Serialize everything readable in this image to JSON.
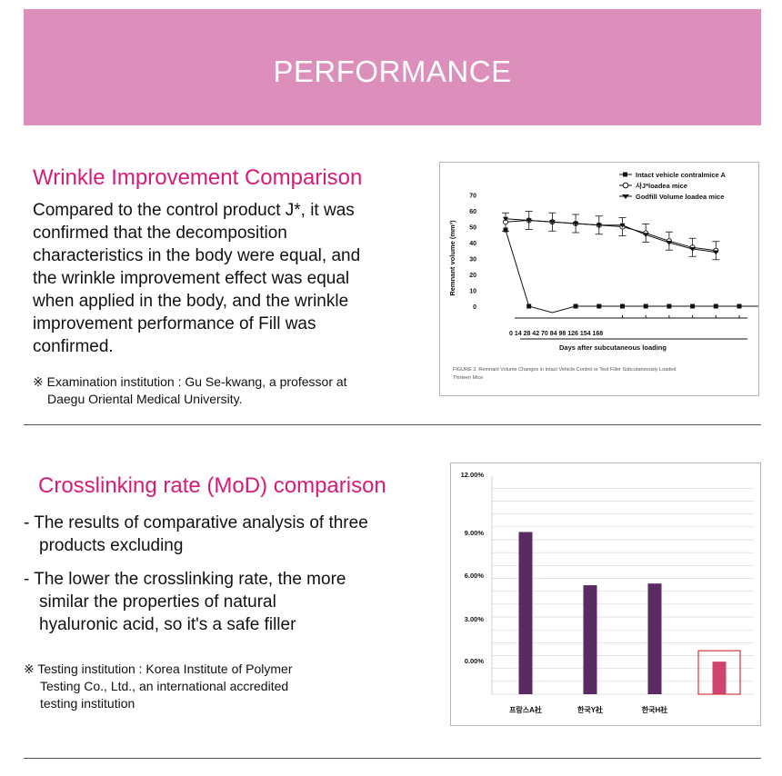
{
  "banner": {
    "title": "PERFORMANCE"
  },
  "section1": {
    "title": "Wrinkle Improvement  Comparison",
    "lines": [
      "Compared to the control product J*, it was",
      "confirmed that the decomposition",
      "characteristics in the body were equal, and",
      "the wrinkle improvement effect was equal",
      "when applied in the body, and the wrinkle",
      "improvement performance of Fill was",
      "confirmed."
    ],
    "note_line1": "※ Examination institution : Gu Se-kwang, a professor at",
    "note_line2": "Daegu Oriental Medical University."
  },
  "section2": {
    "title": "Crosslinking rate (MoD) comparison",
    "bullet1_line1": "- The results of comparative analysis of three",
    "bullet1_line2": "products excluding",
    "bullet2_line1": "- The lower the crosslinking rate, the more",
    "bullet2_line2": "similar the properties of natural",
    "bullet2_line3": "hyaluronic acid, so it's a safe  filler",
    "note_line1": "※ Testing institution : Korea Institute of Polymer",
    "note_line2": "Testing Co., Ltd., an international  accredited",
    "note_line3": "testing institution"
  },
  "chart_data": [
    {
      "type": "line",
      "ylabel": "Remnant volume (mm³)",
      "xlabel": "Days after subcutaneous loading",
      "x_tick_text": "0  14 28 42 70 84  98 126 154 168",
      "yticks": [
        0,
        10,
        20,
        30,
        40,
        50,
        60,
        70
      ],
      "ylim": [
        0,
        70
      ],
      "x": [
        0,
        14,
        28,
        42,
        70,
        84,
        98,
        126,
        154,
        168,
        182,
        196
      ],
      "legend_position": "top-right",
      "caption": "FIGURE 3. Remnant Volume Changes in Intact Vehicle Control or Test Filler Subcutaneously Loaded Thirteen Mice",
      "series": [
        {
          "name": "Intact vehicle contralmice A",
          "marker": "filled-square",
          "values": [
            48,
            0,
            -4,
            0,
            0,
            0,
            0,
            0,
            0,
            0,
            0,
            0
          ]
        },
        {
          "name": "사J*loadea mice",
          "marker": "open-circle",
          "values": [
            53,
            54,
            53,
            52,
            51,
            50,
            46,
            41,
            37,
            35,
            null,
            null
          ]
        },
        {
          "name": "Godfill Volume loadea mice",
          "marker": "filled-triangle",
          "values": [
            55,
            54,
            53,
            52,
            51,
            51,
            45,
            40,
            36,
            34,
            null,
            null
          ]
        }
      ]
    },
    {
      "type": "bar",
      "categories": [
        "프랑스A社",
        "한국Y社",
        "한국H社",
        ""
      ],
      "values": [
        9.45,
        6.35,
        6.45,
        1.9
      ],
      "colors": [
        "#5a2a63",
        "#5a2a63",
        "#5a2a63",
        "#d0436e"
      ],
      "highlight_color": "#d23a3a",
      "highlight_index": 3,
      "yticks": [
        "12.00%",
        "9.00%",
        "6.00%",
        "3.00%",
        "0.00%"
      ]
    }
  ]
}
